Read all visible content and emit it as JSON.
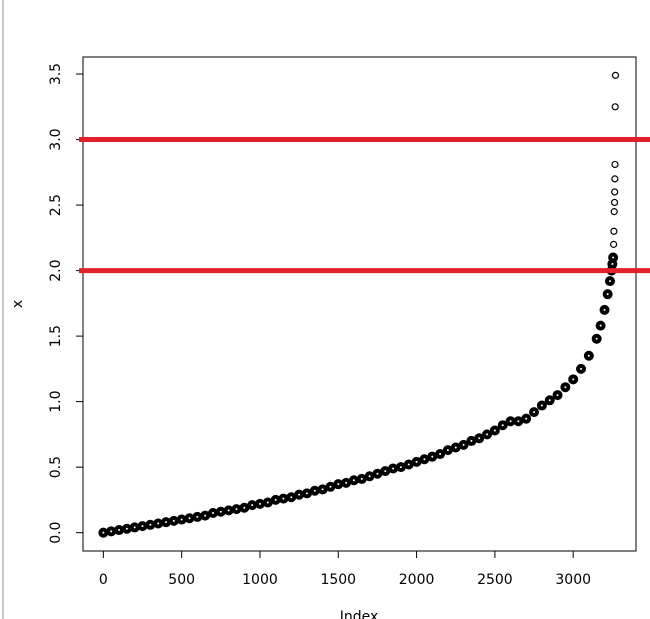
{
  "chart_data": {
    "type": "scatter",
    "x_label": "Index",
    "y_label": "x",
    "color": "#000000",
    "xlim": [
      -130,
      3401
    ],
    "ylim": [
      -0.14,
      3.63
    ],
    "xticks": [
      0,
      500,
      1000,
      1500,
      2000,
      2500,
      3000
    ],
    "yticks": [
      {
        "value": 0,
        "label": "0.0"
      },
      {
        "value": 0.5,
        "label": "0.5"
      },
      {
        "value": 1,
        "label": "1.0"
      },
      {
        "value": 1.5,
        "label": "1.5"
      },
      {
        "value": 2,
        "label": "2.0"
      },
      {
        "value": 2.5,
        "label": "2.5"
      },
      {
        "value": 3,
        "label": "3.0"
      },
      {
        "value": 3.5,
        "label": "3.5"
      }
    ],
    "hlines": [
      {
        "value": 3,
        "color": "#e3212b"
      },
      {
        "value": 2,
        "color": "#e3212b"
      }
    ],
    "x": [
      0,
      50,
      100,
      150,
      200,
      250,
      300,
      350,
      400,
      450,
      500,
      550,
      600,
      650,
      700,
      750,
      800,
      850,
      900,
      950,
      1000,
      1050,
      1100,
      1150,
      1200,
      1250,
      1300,
      1350,
      1400,
      1450,
      1500,
      1550,
      1600,
      1650,
      1700,
      1750,
      1800,
      1850,
      1900,
      1950,
      2000,
      2050,
      2100,
      2150,
      2200,
      2250,
      2300,
      2350,
      2400,
      2450,
      2500,
      2550,
      2600,
      2650,
      2700,
      2750,
      2800,
      2850,
      2900,
      2950,
      3000,
      3050,
      3100,
      3150,
      3175,
      3200,
      3220,
      3235,
      3245,
      3250,
      3255,
      3258,
      3260,
      3262,
      3264,
      3265,
      3266,
      3267,
      3268,
      3270
    ],
    "values": [
      0,
      0.01,
      0.02,
      0.03,
      0.04,
      0.05,
      0.06,
      0.07,
      0.08,
      0.09,
      0.1,
      0.11,
      0.12,
      0.13,
      0.15,
      0.16,
      0.17,
      0.18,
      0.19,
      0.21,
      0.22,
      0.23,
      0.25,
      0.26,
      0.27,
      0.29,
      0.3,
      0.32,
      0.33,
      0.35,
      0.37,
      0.38,
      0.4,
      0.41,
      0.43,
      0.45,
      0.47,
      0.49,
      0.5,
      0.52,
      0.54,
      0.56,
      0.58,
      0.6,
      0.63,
      0.65,
      0.67,
      0.7,
      0.72,
      0.75,
      0.78,
      0.82,
      0.85,
      0.85,
      0.87,
      0.92,
      0.97,
      1.01,
      1.05,
      1.11,
      1.17,
      1.25,
      1.35,
      1.48,
      1.58,
      1.7,
      1.82,
      1.92,
      2.0,
      2.05,
      2.1,
      2.2,
      2.3,
      2.45,
      2.52,
      2.6,
      2.7,
      2.81,
      3.25,
      3.49
    ]
  }
}
